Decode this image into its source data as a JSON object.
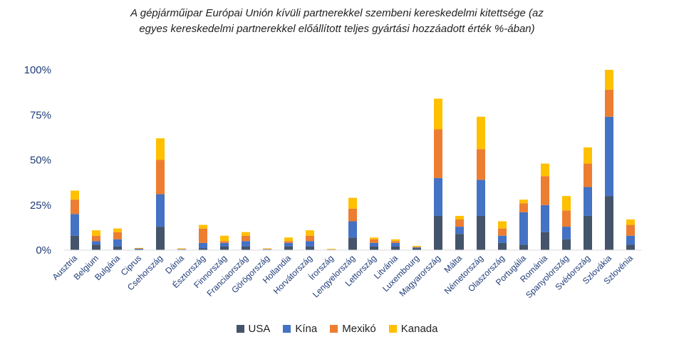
{
  "chart_data": {
    "type": "bar",
    "stacked": true,
    "title_line1": "A gépjárműipar Európai Unión kívüli partnerekkel szembeni kereskedelmi kitettsége (az",
    "title_line2": "egyes kereskedelmi partnerekkel előállított teljes gyártási hozzáadott érték %-ában)",
    "xlabel": "",
    "ylabel": "",
    "ylim": [
      0,
      100
    ],
    "yticks": [
      "0%",
      "25%",
      "50%",
      "75%",
      "100%"
    ],
    "grid": false,
    "legend_position": "bottom",
    "categories": [
      "Ausztria",
      "Belgium",
      "Bulgária",
      "Ciprus",
      "Csehország",
      "Dánia",
      "Észtország",
      "Finnország",
      "Franciaország",
      "Görögország",
      "Hollandia",
      "Horvátország",
      "Írország",
      "Lengyelország",
      "Lettország",
      "Litvánia",
      "Luxembourg",
      "Magyarország",
      "Málta",
      "Németország",
      "Olaszország",
      "Portugália",
      "Románia",
      "Spanyolország",
      "Svédország",
      "Szlovákia",
      "Szlovénia"
    ],
    "series": [
      {
        "name": "USA",
        "color": "#44546a",
        "values": [
          8,
          3,
          2,
          0.5,
          13,
          0.3,
          1,
          2,
          2,
          0.3,
          2,
          2,
          0.2,
          7,
          2,
          2,
          1,
          19,
          9,
          19,
          4,
          3,
          10,
          6,
          19,
          30,
          3
        ]
      },
      {
        "name": "Kína",
        "color": "#4472c4",
        "values": [
          12,
          2,
          4,
          0.3,
          18,
          0.2,
          3,
          2,
          3,
          0.2,
          2,
          3,
          0.1,
          9,
          2,
          2,
          0.5,
          21,
          4,
          20,
          4,
          18,
          15,
          7,
          16,
          44,
          5
        ]
      },
      {
        "name": "Mexikó",
        "color": "#ed7d31",
        "values": [
          8,
          3,
          4,
          0.2,
          19,
          0.2,
          8,
          1,
          3,
          0.2,
          1,
          3,
          0.1,
          7,
          2,
          1,
          0.3,
          27,
          4,
          17,
          4,
          5,
          16,
          9,
          13,
          15,
          6
        ]
      },
      {
        "name": "Kanada",
        "color": "#ffc000",
        "values": [
          5,
          3,
          2,
          0.2,
          12,
          0.3,
          2,
          3,
          2,
          0.3,
          2,
          3,
          0.3,
          6,
          1,
          1,
          0.5,
          17,
          2,
          18,
          4,
          2,
          7,
          8,
          9,
          11,
          3
        ]
      }
    ]
  }
}
